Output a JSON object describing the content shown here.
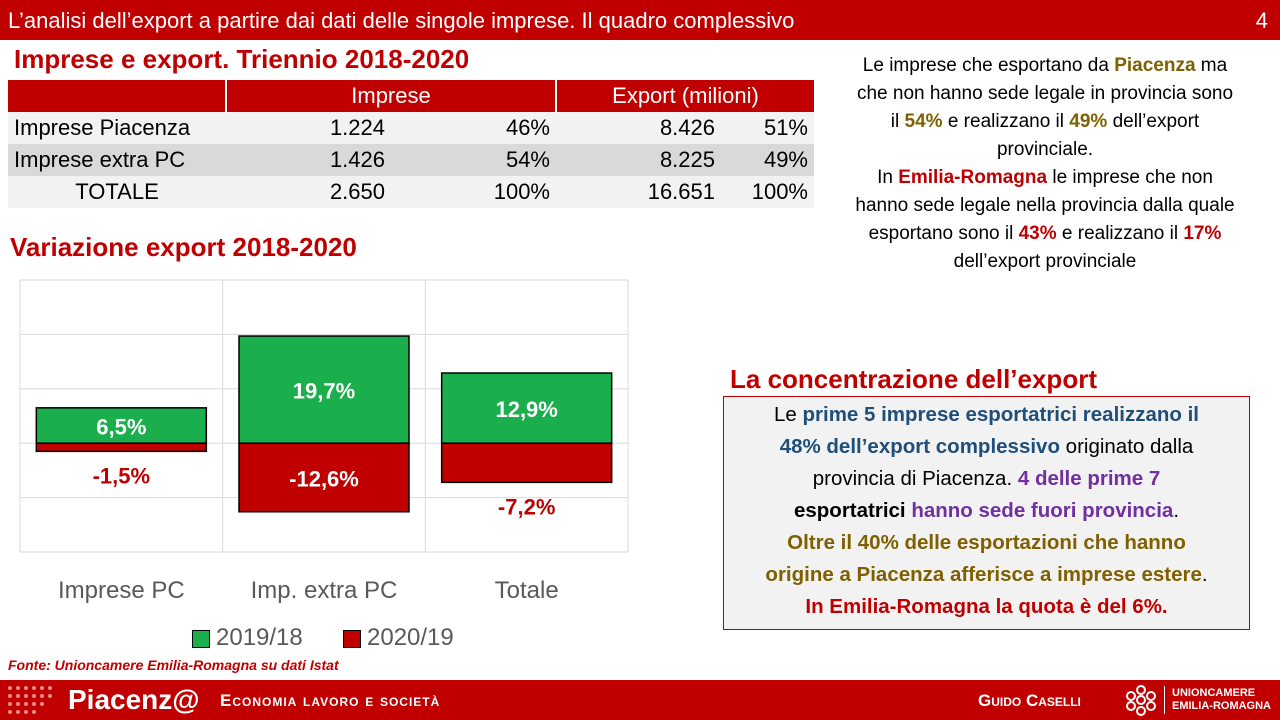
{
  "header": {
    "title": "L’analisi dell’export a partire dai dati delle singole imprese. Il quadro complessivo",
    "page": "4"
  },
  "table_title": "Imprese e export. Triennio 2018-2020",
  "table": {
    "col_imprese": "Imprese",
    "col_export": "Export (milioni)",
    "rows": [
      {
        "label": "Imprese Piacenza",
        "imprese": "1.224",
        "imprese_pct": "46%",
        "export": "8.426",
        "export_pct": "51%"
      },
      {
        "label": "Imprese extra PC",
        "imprese": "1.426",
        "imprese_pct": "54%",
        "export": "8.225",
        "export_pct": "49%"
      },
      {
        "label": "TOTALE",
        "imprese": "2.650",
        "imprese_pct": "100%",
        "export": "16.651",
        "export_pct": "100%"
      }
    ]
  },
  "right_text": {
    "p1a": "Le imprese che esportano da ",
    "p1b": "Piacenza",
    "p1c": " ma",
    "p1d": "che non hanno sede legale in provincia sono",
    "p1e": "il ",
    "p1f": "54%",
    "p1g": " e realizzano il ",
    "p1h": "49%",
    "p1i": " dell’export",
    "p1j": "provinciale.",
    "p2a": "In ",
    "p2b": "Emilia-Romagna",
    "p2c": " le imprese che non",
    "p2d": "hanno sede legale nella provincia dalla quale",
    "p2e": "esportano  sono il ",
    "p2f": "43%",
    "p2g": " e realizzano il ",
    "p2h": "17%",
    "p2i": "dell’export provinciale"
  },
  "chart_title": "Variazione export 2018-2020",
  "chart_data": {
    "type": "bar",
    "categories": [
      "Imprese PC",
      "Imp. extra PC",
      "Totale"
    ],
    "series": [
      {
        "name": "2019/18",
        "values": [
          6.5,
          19.7,
          12.9
        ],
        "labels": [
          "6,5%",
          "19,7%",
          "12,9%"
        ],
        "color": "#1aae4c"
      },
      {
        "name": "2020/19",
        "values": [
          -1.5,
          -12.6,
          -7.2
        ],
        "labels": [
          "-1,5%",
          "-12,6%",
          "-7,2%"
        ],
        "color": "#c00000"
      }
    ],
    "ylim": [
      -20,
      30
    ],
    "grid": true,
    "legend": "bottom"
  },
  "concentration": {
    "title": "La concentrazione dell’export",
    "l1a": "Le ",
    "l1b": "prime 5 imprese esportatrici realizzano il",
    "l2a": "48% dell’export complessivo",
    "l2b": " originato dalla",
    "l3a": "provincia di Piacenza. ",
    "l3b": "4 delle prime 7",
    "l4a": "esportatrici",
    "l4b": " hanno sede fuori provincia",
    "l4c": ".",
    "l5": "Oltre il 40% delle esportazioni che hanno",
    "l6a": "origine a Piacenza afferisce a imprese estere",
    "l6b": ".",
    "l7": "In Emilia-Romagna la quota è del 6%."
  },
  "source": "Fonte: Unioncamere Emilia-Romagna su dati Istat",
  "footer": {
    "brand": "Piacenz@",
    "tagline": "Economia lavoro e società",
    "author": "Guido Caselli",
    "org_line1": "UNIONCAMERE",
    "org_line2": "EMILIA-ROMAGNA"
  }
}
